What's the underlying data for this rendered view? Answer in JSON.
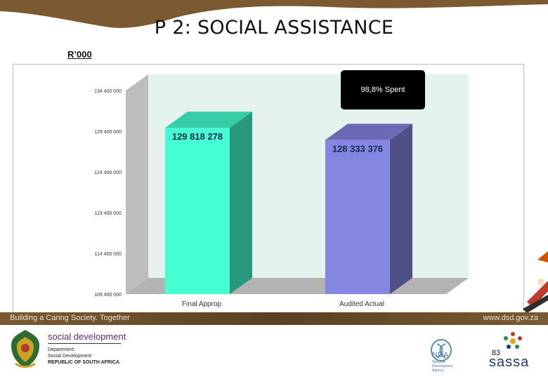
{
  "slide": {
    "title": "P 2: SOCIAL ASSISTANCE",
    "unit_label": "R’000",
    "page_number": "83"
  },
  "footer": {
    "tagline": "Building a Caring Society. Together",
    "website": "www.dsd.gov.za",
    "dept_name": "social development",
    "dept_sub": [
      "Department:",
      "Social Development",
      "REPUBLIC OF SOUTH AFRICA"
    ],
    "nda_name": "NDA",
    "nda_sub": [
      "National",
      "Development",
      "Agency"
    ],
    "sassa_name": "sassa"
  },
  "chart_data": {
    "type": "bar",
    "categories": [
      "Final Approp",
      "Audited Actual"
    ],
    "values": [
      129818278,
      128333376
    ],
    "data_labels": [
      "129 818 278",
      "128 333 376"
    ],
    "ylim": [
      109400000,
      134400000
    ],
    "y_ticks": [
      109400000,
      114400000,
      119400000,
      124400000,
      129400000,
      134400000
    ],
    "y_tick_labels": [
      "109 400 000",
      "114 400 000",
      "119 400 000",
      "124 400 000",
      "129 400 000",
      "134 400 000"
    ],
    "annotation": "98,8% Spent",
    "colors": [
      "#45ffd2",
      "#8585e2"
    ],
    "grid": false,
    "style": "3d"
  }
}
